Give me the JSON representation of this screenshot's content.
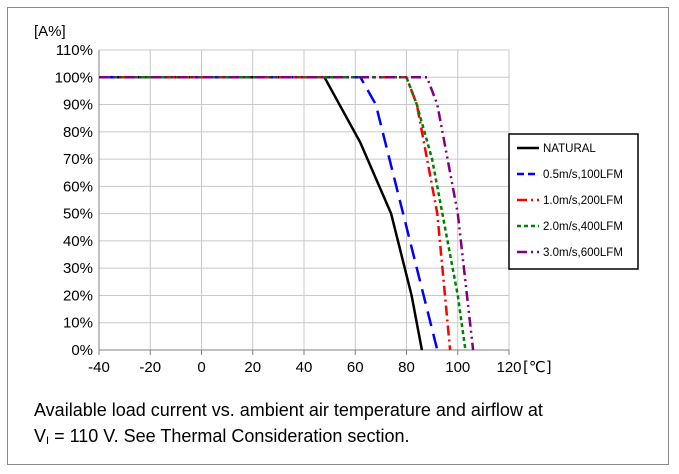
{
  "chart_data": {
    "type": "line",
    "title": "",
    "xlabel": "[℃]",
    "ylabel": "[A%]",
    "xlim": [
      -40,
      120
    ],
    "ylim": [
      0,
      110
    ],
    "x_ticks": [
      "-40",
      "-20",
      "0",
      "20",
      "40",
      "60",
      "80",
      "100",
      "120"
    ],
    "y_ticks": [
      "0%",
      "10%",
      "20%",
      "30%",
      "40%",
      "50%",
      "60%",
      "70%",
      "80%",
      "90%",
      "100%",
      "110%"
    ],
    "grid": true,
    "legend_position": "right",
    "series": [
      {
        "name": "NATURAL",
        "color": "#000000",
        "dash": "",
        "points": [
          [
            -40,
            100
          ],
          [
            48,
            100
          ],
          [
            62,
            76
          ],
          [
            74,
            50
          ],
          [
            82,
            20
          ],
          [
            86,
            0
          ]
        ]
      },
      {
        "name": "0.5m/s,100LFM",
        "color": "#0000ff",
        "dash": "15,8",
        "points": [
          [
            -40,
            100
          ],
          [
            62,
            100
          ],
          [
            68,
            90
          ],
          [
            84,
            30
          ],
          [
            92,
            0
          ]
        ]
      },
      {
        "name": "1.0m/s,200LFM",
        "color": "#ff0000",
        "dash": "10,4,2,4",
        "points": [
          [
            -40,
            100
          ],
          [
            80,
            100
          ],
          [
            84,
            90
          ],
          [
            92,
            50
          ],
          [
            97,
            0
          ]
        ]
      },
      {
        "name": "2.0m/s,400LFM",
        "color": "#008000",
        "dash": "4,3",
        "points": [
          [
            -40,
            100
          ],
          [
            80,
            100
          ],
          [
            84,
            90
          ],
          [
            90,
            70
          ],
          [
            100,
            20
          ],
          [
            103,
            0
          ]
        ]
      },
      {
        "name": "3.0m/s,600LFM",
        "color": "#800080",
        "dash": "10,4,2,4,2,4",
        "points": [
          [
            -40,
            100
          ],
          [
            88,
            100
          ],
          [
            92,
            90
          ],
          [
            100,
            50
          ],
          [
            106,
            0
          ]
        ]
      }
    ]
  },
  "caption": {
    "line1": "Available load current vs. ambient air temperature and airflow at",
    "v": "V",
    "v_sub": "I",
    "line2_rest": " = 110 V. See Thermal Consideration section."
  }
}
